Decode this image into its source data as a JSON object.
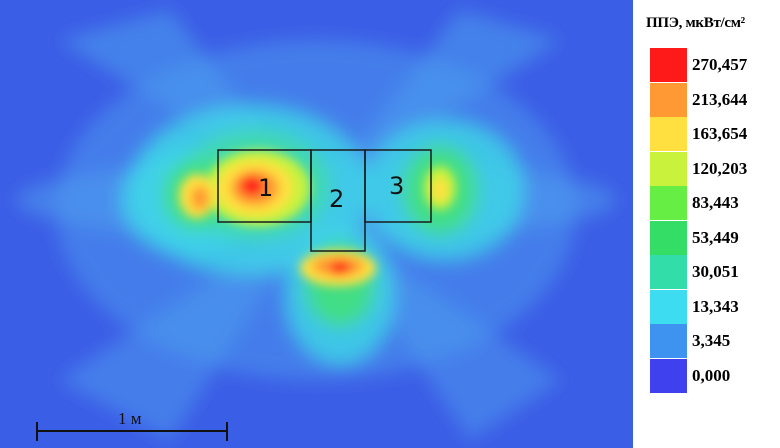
{
  "map": {
    "zones": [
      {
        "label": "1"
      },
      {
        "label": "2"
      },
      {
        "label": "3"
      }
    ],
    "scale_bar_label": "1 м"
  },
  "legend": {
    "title": "ППЭ, мкВт/см²",
    "items": [
      {
        "value": "270,457",
        "color": "#ff1a1a"
      },
      {
        "value": "213,644",
        "color": "#ff9933"
      },
      {
        "value": "163,654",
        "color": "#ffe040"
      },
      {
        "value": "120,203",
        "color": "#c8f23c"
      },
      {
        "value": "83,443",
        "color": "#66ee44"
      },
      {
        "value": "53,449",
        "color": "#33dd66"
      },
      {
        "value": "30,051",
        "color": "#33ddaa"
      },
      {
        "value": "13,343",
        "color": "#3ddcf0"
      },
      {
        "value": "3,345",
        "color": "#3f93f0"
      },
      {
        "value": "0,000",
        "color": "#3f40ee"
      }
    ]
  }
}
